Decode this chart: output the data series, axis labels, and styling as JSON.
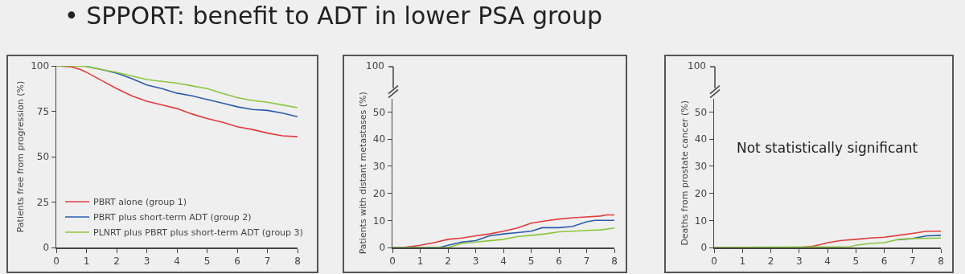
{
  "chart_data": [
    {
      "type": "line",
      "title": "• SPPORT: benefit to ADT in lower PSA group",
      "ylabel": "Patients free from progression (%)",
      "x": [
        0,
        0.5,
        0.8,
        1,
        1.5,
        2,
        2.5,
        3,
        3.5,
        4,
        4.5,
        5,
        5.5,
        6,
        6.5,
        7,
        7.5,
        8
      ],
      "xlim": [
        0,
        8
      ],
      "xticks": [
        0,
        1,
        2,
        3,
        4,
        5,
        6,
        7,
        8
      ],
      "ylim": [
        0,
        100
      ],
      "yticks": [
        0,
        25,
        50,
        75,
        100
      ],
      "grid": false,
      "legend": "bottom left",
      "line_style": "solid",
      "series": [
        {
          "name": "PBRT alone (group 1)",
          "color": "#e03c3c",
          "values": [
            100,
            99.5,
            98,
            96.5,
            92,
            87.5,
            83.5,
            80.5,
            78.5,
            76.5,
            73.5,
            71,
            69,
            66.5,
            65,
            63,
            61.5,
            61
          ]
        },
        {
          "name": "PBRT plus short-term ADT (group 2)",
          "color": "#2a5caa",
          "values": [
            null,
            null,
            null,
            99.7,
            98,
            96,
            93,
            89.5,
            87.5,
            85,
            83.5,
            81.5,
            79.5,
            77.5,
            76,
            75.5,
            74,
            72
          ]
        },
        {
          "name": "PLNRT plus PBRT plus short-term ADT (group 3)",
          "color": "#8cc63f",
          "values": [
            100,
            100,
            99.8,
            99.7,
            98,
            96.5,
            94.5,
            92.5,
            91.5,
            90.5,
            89,
            87.5,
            85,
            82.5,
            81,
            80,
            78.5,
            77
          ]
        }
      ]
    },
    {
      "type": "line",
      "ylabel": "Patients with distant metastases (%)",
      "annotations": [
        "100"
      ],
      "xlim": [
        0,
        8
      ],
      "xticks": [
        0,
        1,
        2,
        3,
        4,
        5,
        6,
        7,
        8
      ],
      "ylim": [
        0,
        55
      ],
      "yticks": [
        0,
        10,
        20,
        30,
        40,
        50
      ],
      "grid": false,
      "legend": false,
      "line_style": "solid",
      "series": [
        {
          "color": "#e03c3c",
          "x": [
            0,
            0.4,
            1,
            1.5,
            2,
            2.5,
            3,
            3.5,
            4,
            4.5,
            5,
            5.5,
            6,
            6.5,
            7,
            7.5,
            7.7,
            8
          ],
          "values": [
            0,
            0,
            0.8,
            1.8,
            3,
            3.5,
            4.3,
            5,
            6,
            7.2,
            9,
            9.8,
            10.5,
            11,
            11.3,
            11.6,
            12,
            12
          ]
        },
        {
          "color": "#2a5caa",
          "x": [
            0,
            1.7,
            2,
            2.5,
            3,
            3.5,
            4,
            4.5,
            5,
            5.4,
            6,
            6.5,
            7,
            7.3,
            8
          ],
          "values": [
            0,
            0,
            0.8,
            2,
            2.5,
            4.3,
            5,
            5.5,
            6,
            7.3,
            7.3,
            7.8,
            9.5,
            10,
            10
          ]
        },
        {
          "color": "#8cc63f",
          "x": [
            0,
            2,
            2.5,
            3,
            3.5,
            4,
            4.5,
            5,
            5.5,
            6,
            6.5,
            7,
            7.5,
            8
          ],
          "values": [
            0,
            0,
            1.5,
            2,
            2.5,
            3,
            4,
            4.5,
            5,
            5.8,
            6,
            6.3,
            6.5,
            7.2
          ]
        }
      ]
    },
    {
      "type": "line",
      "ylabel": "Deaths from prostate cancer (%)",
      "annotations": [
        "100",
        "Not statistically significant"
      ],
      "xlim": [
        0,
        8
      ],
      "xticks": [
        0,
        1,
        2,
        3,
        4,
        5,
        6,
        7,
        8
      ],
      "ylim": [
        0,
        55
      ],
      "yticks": [
        0,
        10,
        20,
        30,
        40,
        50
      ],
      "grid": false,
      "legend": false,
      "line_style": "solid",
      "series": [
        {
          "color": "#e03c3c",
          "x": [
            0,
            3,
            3.5,
            3.8,
            4,
            4.5,
            5,
            5.5,
            6,
            6.5,
            7,
            7.5,
            8
          ],
          "values": [
            0,
            0,
            0.5,
            1.2,
            1.8,
            2.6,
            3,
            3.5,
            3.8,
            4.5,
            5.2,
            6,
            6
          ]
        },
        {
          "color": "#2a5caa",
          "x": [
            6.5,
            7,
            7.5,
            8
          ],
          "values": [
            2.8,
            3.3,
            4.3,
            4.5
          ]
        },
        {
          "color": "#8cc63f",
          "x": [
            0,
            1.7,
            4.8,
            5,
            5.5,
            6,
            6.5,
            7,
            8
          ],
          "values": [
            0,
            0.1,
            0.3,
            0.8,
            1.5,
            1.8,
            3,
            3.3,
            3.5
          ]
        }
      ]
    }
  ]
}
